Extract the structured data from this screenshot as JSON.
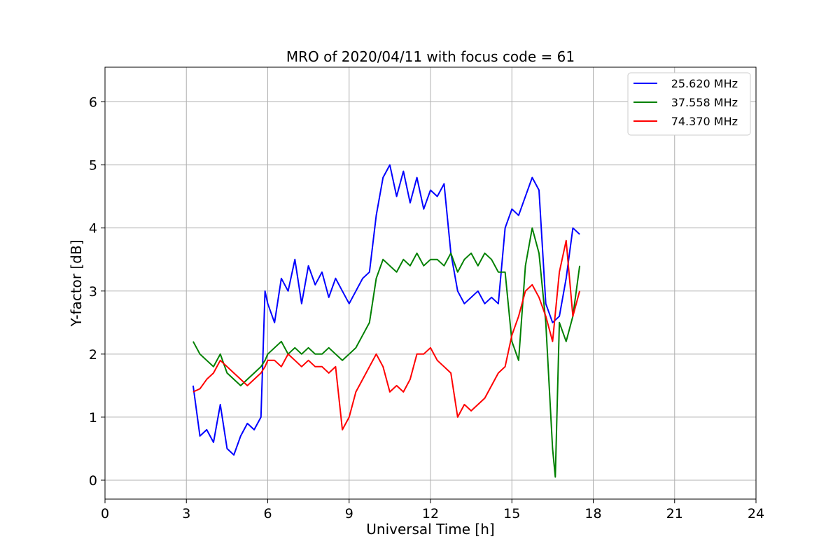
{
  "chart_data": {
    "type": "line",
    "title": "MRO of 2020/04/11 with focus code = 61",
    "xlabel": "Universal Time [h]",
    "ylabel": "Y-factor [dB]",
    "xlim": [
      0,
      24
    ],
    "ylim": [
      -0.3,
      6.55
    ],
    "xticks": [
      0,
      3,
      6,
      9,
      12,
      15,
      18,
      21,
      24
    ],
    "yticks": [
      0,
      1,
      2,
      3,
      4,
      5,
      6
    ],
    "xtick_labels": [
      "0",
      "3",
      "6",
      "9",
      "12",
      "15",
      "18",
      "21",
      "24"
    ],
    "ytick_labels": [
      "0",
      "1",
      "2",
      "3",
      "4",
      "5",
      "6"
    ],
    "grid": true,
    "legend_position": "top-right",
    "series": [
      {
        "name": "25.620 MHz",
        "color": "#0000ff",
        "x": [
          3.25,
          3.5,
          3.75,
          4.0,
          4.25,
          4.5,
          4.75,
          5.0,
          5.25,
          5.5,
          5.75,
          5.9,
          6.0,
          6.25,
          6.5,
          6.75,
          7.0,
          7.25,
          7.5,
          7.75,
          8.0,
          8.25,
          8.5,
          8.75,
          9.0,
          9.25,
          9.5,
          9.75,
          10.0,
          10.25,
          10.5,
          10.75,
          11.0,
          11.25,
          11.5,
          11.75,
          12.0,
          12.25,
          12.5,
          12.75,
          13.0,
          13.25,
          13.5,
          13.75,
          14.0,
          14.25,
          14.5,
          14.75,
          15.0,
          15.25,
          15.5,
          15.75,
          16.0,
          16.25,
          16.5,
          16.75,
          17.0,
          17.25,
          17.5
        ],
        "values": [
          1.5,
          0.7,
          0.8,
          0.6,
          1.2,
          0.5,
          0.4,
          0.7,
          0.9,
          0.8,
          1.0,
          3.0,
          2.8,
          2.5,
          3.2,
          3.0,
          3.5,
          2.8,
          3.4,
          3.1,
          3.3,
          2.9,
          3.2,
          3.0,
          2.8,
          3.0,
          3.2,
          3.3,
          4.2,
          4.8,
          5.0,
          4.5,
          4.9,
          4.4,
          4.8,
          4.3,
          4.6,
          4.5,
          4.7,
          3.6,
          3.0,
          2.8,
          2.9,
          3.0,
          2.8,
          2.9,
          2.8,
          4.0,
          4.3,
          4.2,
          4.5,
          4.8,
          4.6,
          2.8,
          2.5,
          2.6,
          3.2,
          4.0,
          3.9
        ]
      },
      {
        "name": "37.558 MHz",
        "color": "#008000",
        "x": [
          3.25,
          3.5,
          3.75,
          4.0,
          4.25,
          4.5,
          4.75,
          5.0,
          5.25,
          5.5,
          5.75,
          5.9,
          6.0,
          6.25,
          6.5,
          6.75,
          7.0,
          7.25,
          7.5,
          7.75,
          8.0,
          8.25,
          8.5,
          8.75,
          9.0,
          9.25,
          9.5,
          9.75,
          10.0,
          10.25,
          10.5,
          10.75,
          11.0,
          11.25,
          11.5,
          11.75,
          12.0,
          12.25,
          12.5,
          12.75,
          13.0,
          13.25,
          13.5,
          13.75,
          14.0,
          14.25,
          14.5,
          14.75,
          15.0,
          15.25,
          15.5,
          15.75,
          16.0,
          16.25,
          16.5,
          16.6,
          16.75,
          17.0,
          17.25,
          17.5
        ],
        "values": [
          2.2,
          2.0,
          1.9,
          1.8,
          2.0,
          1.7,
          1.6,
          1.5,
          1.6,
          1.7,
          1.8,
          1.9,
          2.0,
          2.1,
          2.2,
          2.0,
          2.1,
          2.0,
          2.1,
          2.0,
          2.0,
          2.1,
          2.0,
          1.9,
          2.0,
          2.1,
          2.3,
          2.5,
          3.2,
          3.5,
          3.4,
          3.3,
          3.5,
          3.4,
          3.6,
          3.4,
          3.5,
          3.5,
          3.4,
          3.6,
          3.3,
          3.5,
          3.6,
          3.4,
          3.6,
          3.5,
          3.3,
          3.3,
          2.2,
          1.9,
          3.4,
          4.0,
          3.6,
          2.5,
          0.5,
          0.05,
          2.5,
          2.2,
          2.6,
          3.4
        ]
      },
      {
        "name": "74.370 MHz",
        "color": "#ff0000",
        "x": [
          3.25,
          3.5,
          3.75,
          4.0,
          4.25,
          4.5,
          4.75,
          5.0,
          5.25,
          5.5,
          5.75,
          5.9,
          6.0,
          6.25,
          6.5,
          6.75,
          7.0,
          7.25,
          7.5,
          7.75,
          8.0,
          8.25,
          8.5,
          8.75,
          9.0,
          9.25,
          9.5,
          9.75,
          10.0,
          10.25,
          10.5,
          10.75,
          11.0,
          11.25,
          11.5,
          11.75,
          12.0,
          12.25,
          12.5,
          12.75,
          13.0,
          13.25,
          13.5,
          13.75,
          14.0,
          14.25,
          14.5,
          14.75,
          15.0,
          15.25,
          15.5,
          15.75,
          16.0,
          16.25,
          16.5,
          16.75,
          17.0,
          17.25,
          17.5
        ],
        "values": [
          1.4,
          1.45,
          1.6,
          1.7,
          1.9,
          1.8,
          1.7,
          1.6,
          1.5,
          1.6,
          1.7,
          1.8,
          1.9,
          1.9,
          1.8,
          2.0,
          1.9,
          1.8,
          1.9,
          1.8,
          1.8,
          1.7,
          1.8,
          0.8,
          1.0,
          1.4,
          1.6,
          1.8,
          2.0,
          1.8,
          1.4,
          1.5,
          1.4,
          1.6,
          2.0,
          2.0,
          2.1,
          1.9,
          1.8,
          1.7,
          1.0,
          1.2,
          1.1,
          1.2,
          1.3,
          1.5,
          1.7,
          1.8,
          2.3,
          2.6,
          3.0,
          3.1,
          2.9,
          2.6,
          2.2,
          3.3,
          3.8,
          2.6,
          3.0
        ]
      }
    ]
  }
}
